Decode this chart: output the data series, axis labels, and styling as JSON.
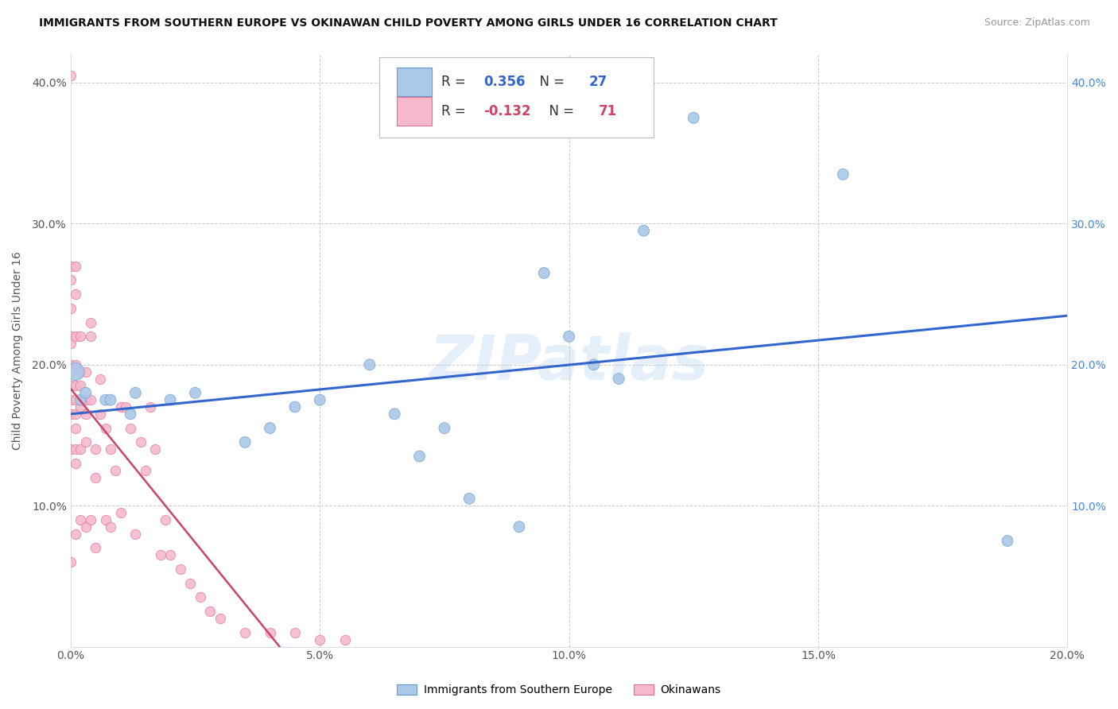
{
  "title": "IMMIGRANTS FROM SOUTHERN EUROPE VS OKINAWAN CHILD POVERTY AMONG GIRLS UNDER 16 CORRELATION CHART",
  "source": "Source: ZipAtlas.com",
  "ylabel": "Child Poverty Among Girls Under 16",
  "xlim": [
    0,
    0.2
  ],
  "ylim": [
    0,
    0.42
  ],
  "xticks": [
    0.0,
    0.05,
    0.1,
    0.15,
    0.2
  ],
  "yticks": [
    0.0,
    0.1,
    0.2,
    0.3,
    0.4
  ],
  "blue_R": 0.356,
  "blue_N": 27,
  "pink_R": -0.132,
  "pink_N": 71,
  "legend_blue_label": "Immigrants from Southern Europe",
  "legend_pink_label": "Okinawans",
  "blue_color": "#aac8e8",
  "pink_color": "#f7b8ce",
  "blue_edge_color": "#6699cc",
  "pink_edge_color": "#e07090",
  "blue_line_color": "#3366cc",
  "pink_line_color": "#cc4466",
  "watermark": "ZIPatlas",
  "blue_x": [
    0.001,
    0.002,
    0.003,
    0.007,
    0.008,
    0.012,
    0.013,
    0.02,
    0.025,
    0.035,
    0.04,
    0.045,
    0.05,
    0.06,
    0.065,
    0.07,
    0.075,
    0.08,
    0.09,
    0.095,
    0.1,
    0.105,
    0.11,
    0.115,
    0.125,
    0.155,
    0.188
  ],
  "blue_y": [
    0.195,
    0.175,
    0.18,
    0.175,
    0.175,
    0.165,
    0.18,
    0.175,
    0.18,
    0.145,
    0.155,
    0.17,
    0.175,
    0.2,
    0.165,
    0.135,
    0.155,
    0.105,
    0.085,
    0.265,
    0.22,
    0.2,
    0.19,
    0.295,
    0.375,
    0.335,
    0.075
  ],
  "blue_size": 100,
  "blue_big_size": 250,
  "pink_x": [
    0.0,
    0.0,
    0.0,
    0.0,
    0.0,
    0.0,
    0.0,
    0.0,
    0.0,
    0.0,
    0.0,
    0.0,
    0.0,
    0.001,
    0.001,
    0.001,
    0.001,
    0.001,
    0.001,
    0.001,
    0.001,
    0.001,
    0.001,
    0.001,
    0.002,
    0.002,
    0.002,
    0.002,
    0.002,
    0.002,
    0.003,
    0.003,
    0.003,
    0.003,
    0.003,
    0.004,
    0.004,
    0.004,
    0.004,
    0.005,
    0.005,
    0.005,
    0.006,
    0.006,
    0.007,
    0.007,
    0.008,
    0.008,
    0.009,
    0.01,
    0.01,
    0.011,
    0.012,
    0.013,
    0.014,
    0.015,
    0.016,
    0.017,
    0.018,
    0.019,
    0.02,
    0.022,
    0.024,
    0.026,
    0.028,
    0.03,
    0.035,
    0.04,
    0.045,
    0.05,
    0.055
  ],
  "pink_y": [
    0.405,
    0.27,
    0.26,
    0.24,
    0.22,
    0.215,
    0.2,
    0.195,
    0.185,
    0.175,
    0.165,
    0.14,
    0.06,
    0.27,
    0.25,
    0.22,
    0.2,
    0.185,
    0.175,
    0.165,
    0.155,
    0.14,
    0.13,
    0.08,
    0.22,
    0.195,
    0.185,
    0.17,
    0.14,
    0.09,
    0.195,
    0.175,
    0.165,
    0.145,
    0.085,
    0.23,
    0.22,
    0.175,
    0.09,
    0.14,
    0.12,
    0.07,
    0.19,
    0.165,
    0.155,
    0.09,
    0.14,
    0.085,
    0.125,
    0.17,
    0.095,
    0.17,
    0.155,
    0.08,
    0.145,
    0.125,
    0.17,
    0.14,
    0.065,
    0.09,
    0.065,
    0.055,
    0.045,
    0.035,
    0.025,
    0.02,
    0.01,
    0.01,
    0.01,
    0.005,
    0.005
  ],
  "pink_size": 80
}
